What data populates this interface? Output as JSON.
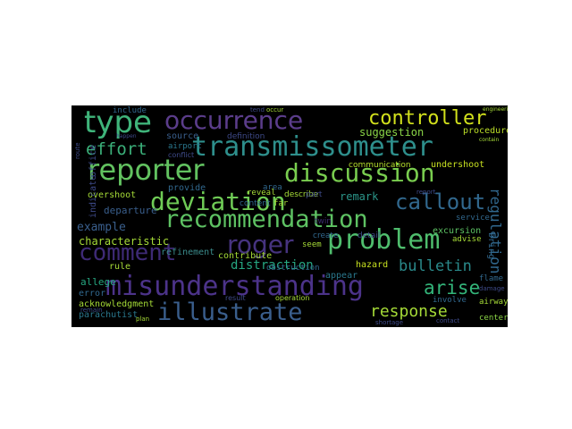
{
  "wordcloud": {
    "words": [
      {
        "text": "type",
        "color": "#3fb47a"
      },
      {
        "text": "occurrence",
        "color": "#5b3d8b"
      },
      {
        "text": "controller",
        "color": "#d2e11c"
      },
      {
        "text": "effort",
        "color": "#3bb07a"
      },
      {
        "text": "transmissometer",
        "color": "#2e8f8c"
      },
      {
        "text": "reporter",
        "color": "#62c260"
      },
      {
        "text": "discussion",
        "color": "#79cd4f"
      },
      {
        "text": "suggestion",
        "color": "#8ad547"
      },
      {
        "text": "procedure",
        "color": "#bcdf27"
      },
      {
        "text": "deviation",
        "color": "#6fcb56"
      },
      {
        "text": "recommendation",
        "color": "#5ec263"
      },
      {
        "text": "callout",
        "color": "#31688e"
      },
      {
        "text": "roger",
        "color": "#46337f"
      },
      {
        "text": "comment",
        "color": "#3e2a76"
      },
      {
        "text": "problem",
        "color": "#4fbd6d"
      },
      {
        "text": "misunderstanding",
        "color": "#4c338a"
      },
      {
        "text": "illustrate",
        "color": "#3a5e8c"
      },
      {
        "text": "response",
        "color": "#a5da37"
      },
      {
        "text": "arise",
        "color": "#33b57a"
      },
      {
        "text": "example",
        "color": "#3a5f8d"
      },
      {
        "text": "characteristic",
        "color": "#a5da37"
      },
      {
        "text": "bulletin",
        "color": "#2a8a8b"
      },
      {
        "text": "distraction",
        "color": "#26a781"
      },
      {
        "text": "regulation",
        "color": "#31688e"
      },
      {
        "text": "excursion",
        "color": "#5cc163"
      },
      {
        "text": "remark",
        "color": "#2b9589"
      },
      {
        "text": "communication",
        "color": "#b5de2b"
      },
      {
        "text": "undershoot",
        "color": "#c7e020"
      },
      {
        "text": "overshoot",
        "color": "#a5da37"
      },
      {
        "text": "departure",
        "color": "#3a5f8d"
      },
      {
        "text": "refinement",
        "color": "#3b8c8c"
      },
      {
        "text": "allege",
        "color": "#26a781"
      },
      {
        "text": "hazard",
        "color": "#c7e020"
      },
      {
        "text": "rule",
        "color": "#a5da37"
      },
      {
        "text": "error",
        "color": "#31688e"
      },
      {
        "text": "acknowledgment",
        "color": "#a5da37"
      },
      {
        "text": "parachutist",
        "color": "#2a788e"
      },
      {
        "text": "airway",
        "color": "#a5da37"
      },
      {
        "text": "center",
        "color": "#8bd646"
      },
      {
        "text": "flame",
        "color": "#31688e"
      },
      {
        "text": "service",
        "color": "#31688e"
      },
      {
        "text": "advise",
        "color": "#a5da37"
      },
      {
        "text": "bring",
        "color": "#31688e"
      },
      {
        "text": "involve",
        "color": "#31688e"
      },
      {
        "text": "contribute",
        "color": "#a5da37"
      },
      {
        "text": "obstruction",
        "color": "#31688e"
      },
      {
        "text": "appear",
        "color": "#2a788e"
      },
      {
        "text": "seem",
        "color": "#a5da37"
      },
      {
        "text": "create",
        "color": "#31688e"
      },
      {
        "text": "detail",
        "color": "#3e4a89"
      },
      {
        "text": "twin",
        "color": "#3b2a6e"
      },
      {
        "text": "far",
        "color": "#a5da37"
      },
      {
        "text": "content",
        "color": "#31688e"
      },
      {
        "text": "reveal",
        "color": "#a5da37"
      },
      {
        "text": "provide",
        "color": "#31688e"
      },
      {
        "text": "area",
        "color": "#31688e"
      },
      {
        "text": "describe",
        "color": "#a5da37"
      },
      {
        "text": "source",
        "color": "#3a5f8d"
      },
      {
        "text": "airport",
        "color": "#2a788e"
      },
      {
        "text": "definition",
        "color": "#3e4a89"
      },
      {
        "text": "include",
        "color": "#31688e"
      },
      {
        "text": "indicate",
        "color": "#3e4a89"
      },
      {
        "text": "office",
        "color": "#3e4a89"
      },
      {
        "text": "conflict",
        "color": "#3e4a89"
      },
      {
        "text": "part",
        "color": "#3e4a89"
      },
      {
        "text": "result",
        "color": "#3e4a89"
      },
      {
        "text": "operation",
        "color": "#a5da37"
      },
      {
        "text": "plan",
        "color": "#a5da37"
      },
      {
        "text": "contact",
        "color": "#3e4a89"
      },
      {
        "text": "remain",
        "color": "#3e4a89"
      },
      {
        "text": "occur",
        "color": "#a5da37"
      },
      {
        "text": "tend",
        "color": "#3e4a89"
      },
      {
        "text": "happen",
        "color": "#3e4a89"
      },
      {
        "text": "route",
        "color": "#3e4a89"
      },
      {
        "text": "report",
        "color": "#3e4a89"
      },
      {
        "text": "damage",
        "color": "#3e4a89"
      },
      {
        "text": "shortage",
        "color": "#3e4a89"
      },
      {
        "text": "engineering",
        "color": "#a5da37"
      },
      {
        "text": "contain",
        "color": "#a5da37"
      }
    ]
  }
}
